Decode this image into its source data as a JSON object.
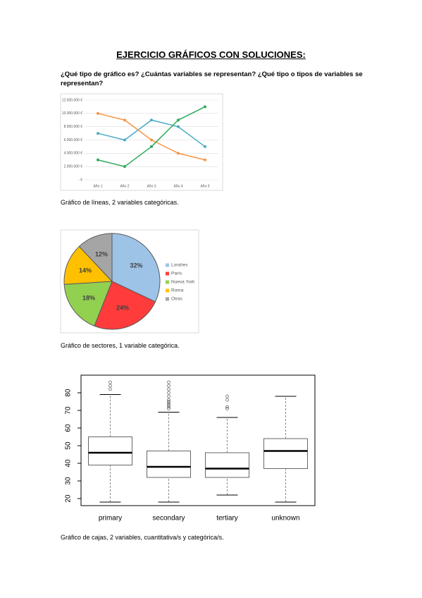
{
  "document": {
    "title": "EJERCICIO GRÁFICOS CON SOLUCIONES:",
    "question": "¿Qué tipo de gráfico es? ¿Cuántas variables se representan? ¿Qué tipo o tipos de variables se representan?",
    "captions": [
      "Gráfico de líneas, 2 variables categóricas.",
      "Gráfico de sectores, 1 variable categórica.",
      "Gráfico de cajas, 2 variables, cuantitativa/s y categórica/s."
    ]
  },
  "chart_data": [
    {
      "type": "line",
      "categories": [
        "Año 1",
        "Año 2",
        "Año 3",
        "Año 4",
        "Año 5"
      ],
      "series": [
        {
          "color": "#4bacc6",
          "values": [
            7000000,
            6000000,
            9000000,
            8000000,
            5000000
          ]
        },
        {
          "color": "#f79646",
          "values": [
            10000000,
            9000000,
            6000000,
            4000000,
            3000000
          ]
        },
        {
          "color": "#2eaa5c",
          "values": [
            3000000,
            2000000,
            5000000,
            9000000,
            11000000
          ]
        }
      ],
      "ylim": [
        0,
        12000000
      ],
      "yticks": [
        {
          "value": 0,
          "label": "- €"
        },
        {
          "value": 2000000,
          "label": "2.000.000 €"
        },
        {
          "value": 4000000,
          "label": "4.000.000 €"
        },
        {
          "value": 6000000,
          "label": "6.000.000 €"
        },
        {
          "value": 8000000,
          "label": "8.000.000 €"
        },
        {
          "value": 10000000,
          "label": "10.000.000 €"
        },
        {
          "value": 12000000,
          "label": "12.000.000 €"
        }
      ],
      "grid": true
    },
    {
      "type": "pie",
      "categories": [
        "Londres",
        "París",
        "Nueva York",
        "Roma",
        "Otras"
      ],
      "values": [
        32,
        24,
        18,
        14,
        12
      ],
      "value_labels": [
        "32%",
        "24%",
        "18%",
        "14%",
        "12%"
      ],
      "colors": [
        "#9dc3e6",
        "#ff3b3b",
        "#92d050",
        "#ffc000",
        "#a5a5a5"
      ],
      "legend": "right"
    },
    {
      "type": "box",
      "categories": [
        "primary",
        "secondary",
        "tertiary",
        "unknown"
      ],
      "whisker_low": [
        18,
        18,
        22,
        18
      ],
      "q1": [
        39,
        32,
        32,
        37
      ],
      "median": [
        46,
        38,
        37,
        47
      ],
      "q3": [
        55,
        47,
        46,
        54
      ],
      "whisker_high": [
        79,
        69,
        66,
        78
      ],
      "outliers": [
        [
          82,
          84,
          86
        ],
        [
          71,
          72,
          73,
          74,
          75,
          76,
          78,
          80,
          82,
          84,
          86
        ],
        [
          71,
          72,
          76,
          78
        ],
        []
      ],
      "ylim": [
        16,
        90
      ],
      "yticks": [
        20,
        30,
        40,
        50,
        60,
        70,
        80
      ]
    }
  ]
}
